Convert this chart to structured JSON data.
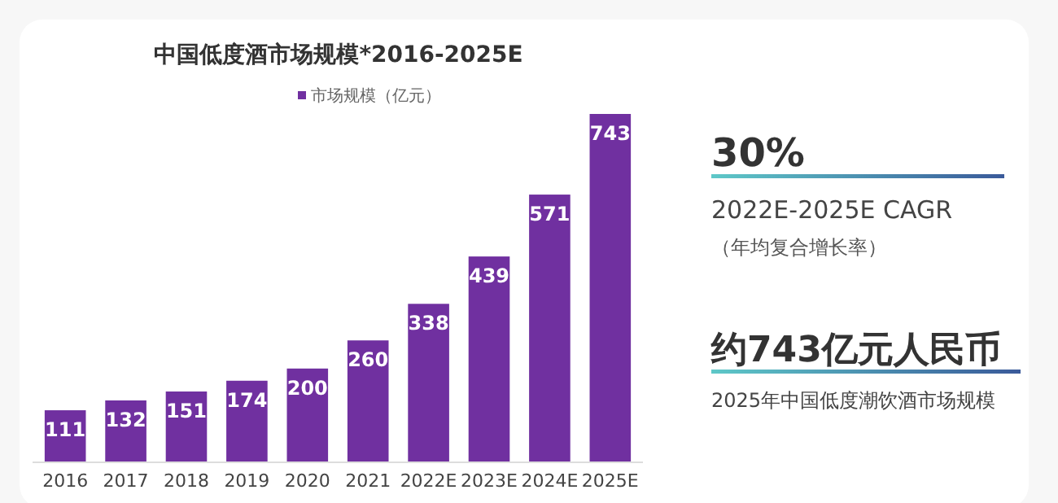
{
  "chart_data": {
    "type": "bar",
    "title": "中国低度酒市场规模*2016-2025E",
    "categories": [
      "2016",
      "2017",
      "2018",
      "2019",
      "2020",
      "2021",
      "2022E",
      "2023E",
      "2024E",
      "2025E"
    ],
    "series": [
      {
        "name": "市场规模（亿元）",
        "color": "#7030a0",
        "values": [
          111,
          132,
          151,
          174,
          200,
          260,
          338,
          439,
          571,
          743
        ]
      }
    ],
    "data_labels": true,
    "legend": "top",
    "tick_labels": "x",
    "annotations": [
      "30%",
      "2022E-2025E CAGR",
      "（年均复合增长率）",
      "约743亿元人民币",
      "2025年中国低度潮饮酒市场规模"
    ]
  }
}
